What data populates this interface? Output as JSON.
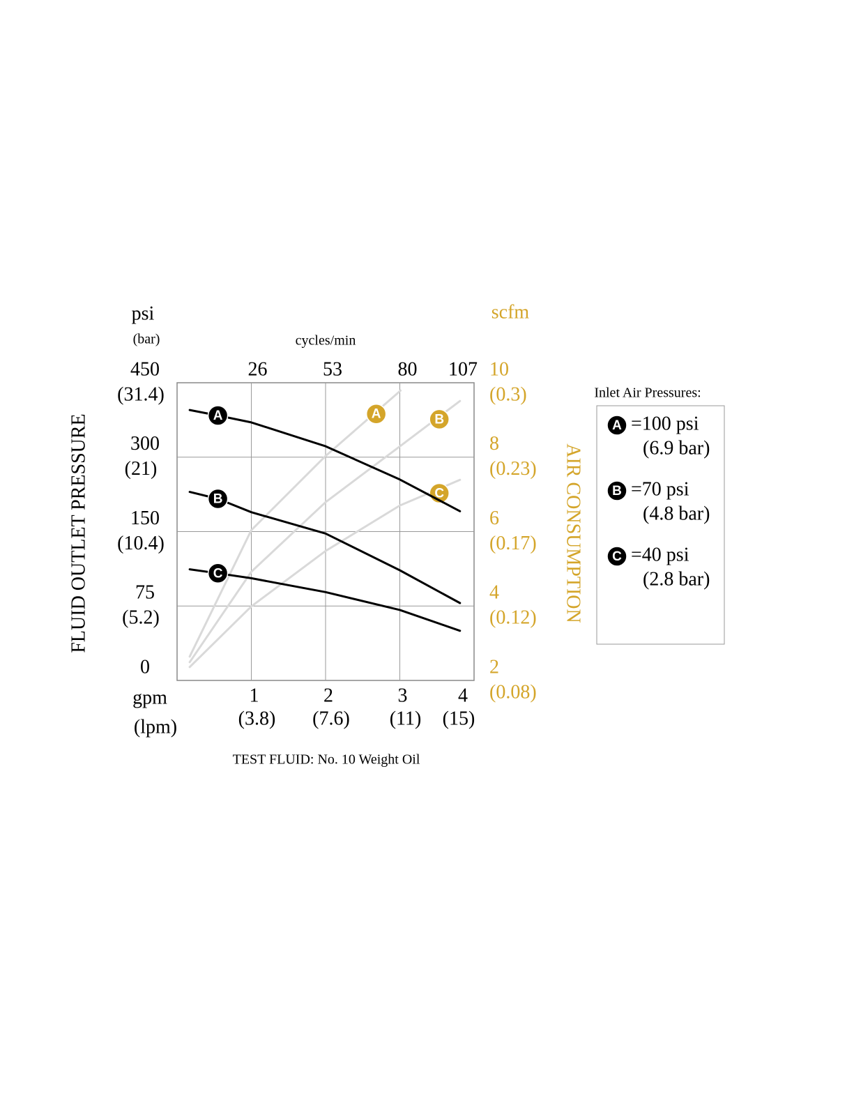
{
  "chart_data": {
    "type": "line",
    "y_unit": "psi",
    "y_unit2": "(bar)",
    "y_title": "FLUID OUTLET PRESSURE",
    "y2_unit": "scfm",
    "y2_title": "AIR CONSUMPTION",
    "x_unit": "gpm",
    "x_unit2": "(lpm)",
    "x2_label": "cycles/min",
    "note": "TEST FLUID: No. 10 Weight Oil",
    "xlim": [
      0,
      4
    ],
    "xticks": [
      1,
      2,
      3,
      4
    ],
    "xtick_sublabels": [
      "(3.8)",
      "(7.6)",
      "(11)",
      "(15)"
    ],
    "x2lim": [
      0,
      107
    ],
    "x2ticks": [
      26,
      53,
      80,
      107
    ],
    "ylim": [
      0,
      450
    ],
    "yticks": [
      0,
      75,
      150,
      300,
      450
    ],
    "ytick_sublabels": [
      null,
      "(5.2)",
      "(10.4)",
      "(21)",
      "(31.4)"
    ],
    "y2lim": [
      2,
      10
    ],
    "y2ticks": [
      2,
      4,
      6,
      8,
      10
    ],
    "y2tick_sublabels": [
      "(0.08)",
      "(0.12)",
      "(0.17)",
      "(0.23)",
      "(0.3)"
    ],
    "grid": true,
    "legend_title": "Inlet Air Pressures:",
    "series": [
      {
        "name": "A",
        "color": "#000000",
        "x": [
          0.17,
          0.55,
          1,
          2,
          3,
          3.81
        ],
        "values": [
          395,
          384,
          370,
          322,
          255,
          191
        ],
        "legend_label": "=100 psi",
        "legend_sublabel": "(6.9 bar)"
      },
      {
        "name": "B",
        "color": "#000000",
        "x": [
          0.17,
          0.55,
          1,
          2,
          3,
          3.81
        ],
        "values": [
          230,
          216,
          189,
          148,
          111,
          78
        ],
        "legend_label": "=70 psi",
        "legend_sublabel": "(4.8 bar)"
      },
      {
        "name": "C",
        "color": "#000000",
        "x": [
          0.17,
          0.55,
          1,
          2,
          3,
          3.81
        ],
        "values": [
          112,
          108,
          103,
          89,
          71,
          50
        ],
        "legend_label": "=40 psi",
        "legend_sublabel": "(2.8 bar)"
      },
      {
        "name": "A",
        "color": "#d9d9d9",
        "marker_color": "#d4a52a",
        "axis": "y2",
        "x": [
          0.17,
          1,
          2,
          3.01
        ],
        "values": [
          2.64,
          6.04,
          8.03,
          9.79
        ]
      },
      {
        "name": "B",
        "color": "#d9d9d9",
        "marker_color": "#d4a52a",
        "axis": "y2",
        "x": [
          0.17,
          1,
          2,
          3,
          3.81
        ],
        "values": [
          2.49,
          4.92,
          6.79,
          8.29,
          9.51
        ]
      },
      {
        "name": "C",
        "color": "#d9d9d9",
        "marker_color": "#d4a52a",
        "axis": "y2",
        "x": [
          0.17,
          1,
          2,
          3,
          3.81
        ],
        "values": [
          2.36,
          3.99,
          5.48,
          6.7,
          7.39
        ]
      }
    ]
  }
}
